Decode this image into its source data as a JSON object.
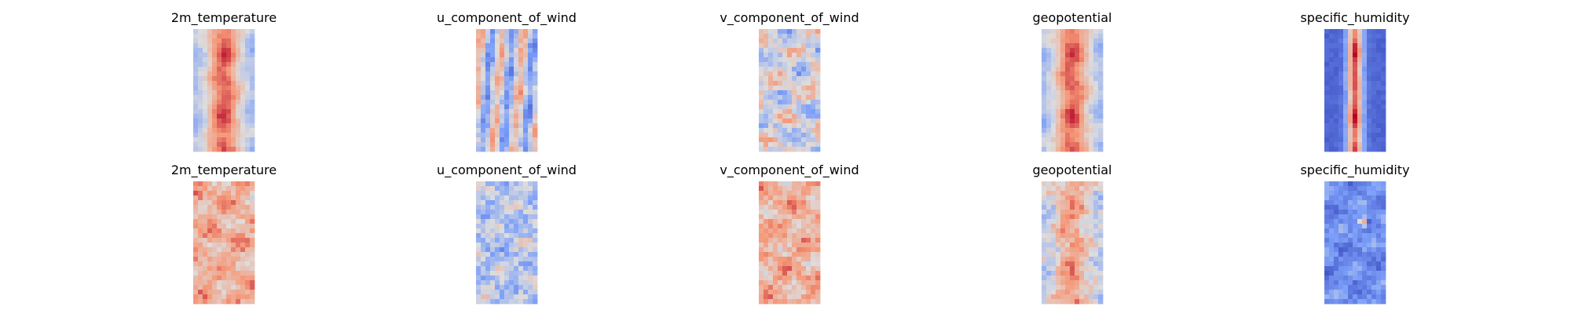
{
  "chart_data": {
    "type": "heatmap",
    "layout": {
      "rows": 2,
      "cols": 5
    },
    "colormap": "coolwarm",
    "grid": false,
    "axes_visible": false,
    "panels": [
      {
        "title": "2m_temperature",
        "row": 0,
        "col": 0,
        "pattern": "warm-core-cool-edges"
      },
      {
        "title": "u_component_of_wind",
        "row": 0,
        "col": 1,
        "pattern": "streaky-mixed"
      },
      {
        "title": "v_component_of_wind",
        "row": 0,
        "col": 2,
        "pattern": "mottled-mixed"
      },
      {
        "title": "geopotential",
        "row": 0,
        "col": 3,
        "pattern": "warm-core-cool-edges"
      },
      {
        "title": "specific_humidity",
        "row": 0,
        "col": 4,
        "pattern": "narrow-warm-core-cold-edges"
      },
      {
        "title": "2m_temperature",
        "row": 1,
        "col": 0,
        "pattern": "warm-noisy"
      },
      {
        "title": "u_component_of_wind",
        "row": 1,
        "col": 1,
        "pattern": "cool-noisy"
      },
      {
        "title": "v_component_of_wind",
        "row": 1,
        "col": 2,
        "pattern": "warm-noisy"
      },
      {
        "title": "geopotential",
        "row": 1,
        "col": 3,
        "pattern": "warm-core-noisy"
      },
      {
        "title": "specific_humidity",
        "row": 1,
        "col": 4,
        "pattern": "cold-noisy-hotspot"
      }
    ]
  }
}
